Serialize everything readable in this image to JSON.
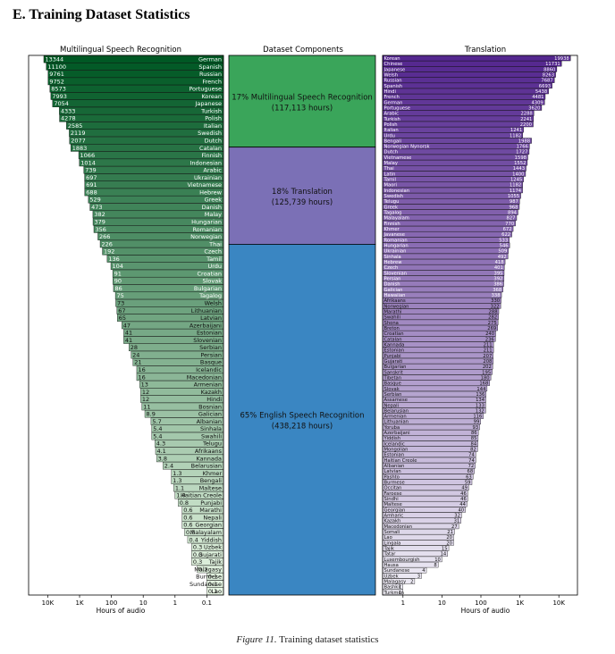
{
  "section_title": "E. Training Dataset Statistics",
  "caption": {
    "figure": "Figure 11.",
    "text": "Training dataset statistics"
  },
  "chart_data": [
    {
      "type": "bar",
      "orientation": "horizontal",
      "title": "Multilingual Speech Recognition",
      "xlabel": "Hours of audio",
      "xscale": "log",
      "direction": "right-to-left",
      "xticks": [
        "10K",
        "1K",
        "100",
        "10",
        "1",
        "0.1"
      ],
      "colormap": "greens",
      "categories": [
        "German",
        "Spanish",
        "Russian",
        "French",
        "Portuguese",
        "Korean",
        "Japanese",
        "Turkish",
        "Polish",
        "Italian",
        "Swedish",
        "Dutch",
        "Catalan",
        "Finnish",
        "Indonesian",
        "Arabic",
        "Ukrainian",
        "Vietnamese",
        "Hebrew",
        "Greek",
        "Danish",
        "Malay",
        "Hungarian",
        "Romanian",
        "Norwegian",
        "Thai",
        "Czech",
        "Tamil",
        "Urdu",
        "Croatian",
        "Slovak",
        "Bulgarian",
        "Tagalog",
        "Welsh",
        "Lithuanian",
        "Latvian",
        "Azerbaijani",
        "Estonian",
        "Slovenian",
        "Serbian",
        "Persian",
        "Basque",
        "Icelandic",
        "Macedonian",
        "Armenian",
        "Kazakh",
        "Hindi",
        "Bosnian",
        "Galician",
        "Albanian",
        "Sinhala",
        "Swahili",
        "Telugu",
        "Afrikaans",
        "Kannada",
        "Belarusian",
        "Khmer",
        "Bengali",
        "Maltese",
        "Haitian Creole",
        "Punjabi",
        "Marathi",
        "Nepali",
        "Georgian",
        "Malayalam",
        "Yiddish",
        "Uzbek",
        "Gujarati",
        "Tajik",
        "Malagasy",
        "Burmese",
        "Sundanese",
        "Lao"
      ],
      "values": [
        13344,
        11100,
        9761,
        9752,
        8573,
        7993,
        7054,
        4333,
        4278,
        2585,
        2119,
        2077,
        1883,
        1066,
        1014,
        739,
        697,
        691,
        688,
        529,
        473,
        382,
        379,
        356,
        266,
        226,
        192,
        136,
        104,
        91,
        90,
        86,
        75,
        73,
        67,
        65,
        47,
        41,
        41,
        28,
        24,
        21,
        16,
        16,
        13,
        12,
        12,
        11,
        8.9,
        5.7,
        5.4,
        5.4,
        4.3,
        4.1,
        3.8,
        2.4,
        1.3,
        1.3,
        1.1,
        1.0,
        0.8,
        0.6,
        0.6,
        0.6,
        0.5,
        0.4,
        0.3,
        0.3,
        0.3,
        0.2,
        0.1,
        0.1,
        0.1
      ],
      "value_labels": [
        "13344",
        "11100",
        "9761",
        "9752",
        "8573",
        "7993",
        "7054",
        "4333",
        "4278",
        "2585",
        "2119",
        "2077",
        "1883",
        "1066",
        "1014",
        "739",
        "697",
        "691",
        "688",
        "529",
        "473",
        "382",
        "379",
        "356",
        "266",
        "226",
        "192",
        "136",
        "104",
        "91",
        "90",
        "86",
        "75",
        "73",
        "67",
        "65",
        "47",
        "41",
        "41",
        "28",
        "24",
        "21",
        "16",
        "16",
        "13",
        "12",
        "12",
        "11",
        "8.9",
        "5.7",
        "5.4",
        "5.4",
        "4.3",
        "4.1",
        "3.8",
        "2.4",
        "1.3",
        "1.3",
        "1.1",
        "1.0",
        "0.8",
        "0.6",
        "0.6",
        "0.6",
        "0.5",
        "0.4",
        "0.3",
        "0.3",
        "0.3",
        "0.2",
        "0.1",
        "0.1",
        "0.1"
      ],
      "xlim": [
        0.03,
        40000
      ]
    },
    {
      "type": "stacked-bar",
      "title": "Dataset Components",
      "segments": [
        {
          "label": "17% Multilingual Speech Recognition",
          "sub": "(117,113 hours)",
          "percent": 17,
          "color": "#3aa55a"
        },
        {
          "label": "18% Translation",
          "sub": "(125,739 hours)",
          "percent": 18,
          "color": "#7b70b6"
        },
        {
          "label": "65% English Speech Recognition",
          "sub": "(438,218 hours)",
          "percent": 65,
          "color": "#3a86c2"
        }
      ]
    },
    {
      "type": "bar",
      "orientation": "horizontal",
      "title": "Translation",
      "xlabel": "Hours of audio",
      "xscale": "log",
      "direction": "left-to-right",
      "xticks": [
        "1",
        "10",
        "100",
        "1K",
        "10K"
      ],
      "colormap": "purples",
      "categories": [
        "Korean",
        "Chinese",
        "Japanese",
        "Welsh",
        "Russian",
        "Spanish",
        "Hindi",
        "French",
        "German",
        "Portuguese",
        "Arabic",
        "Turkish",
        "Polish",
        "Italian",
        "Urdu",
        "Bengali",
        "Norwegian Nynorsk",
        "Dutch",
        "Vietnamese",
        "Malay",
        "Thai",
        "Latin",
        "Tamil",
        "Maori",
        "Indonesian",
        "Swedish",
        "Telugu",
        "Greek",
        "Tagalog",
        "Malayalam",
        "Finnish",
        "Khmer",
        "Javanese",
        "Romanian",
        "Hungarian",
        "Ukrainian",
        "Sinhala",
        "Hebrew",
        "Czech",
        "Slovenian",
        "Persian",
        "Danish",
        "Galician",
        "Hawaiian",
        "Afrikaans",
        "Norwegian",
        "Marathi",
        "Swahili",
        "Shona",
        "Breton",
        "Croatian",
        "Catalan",
        "Kannada",
        "Estonian",
        "Punjabi",
        "Gujarati",
        "Bulgarian",
        "Sanskrit",
        "Tibetan",
        "Basque",
        "Slovak",
        "Serbian",
        "Assamese",
        "Nepali",
        "Belarusian",
        "Armenian",
        "Lithuanian",
        "Yoruba",
        "Azerbaijani",
        "Yiddish",
        "Icelandic",
        "Mongolian",
        "Estonian",
        "Haitian Creole",
        "Albanian",
        "Latvian",
        "Pashto",
        "Burmese",
        "Occitan",
        "Faroese",
        "Sindhi",
        "Maltese",
        "Georgian",
        "Amharic",
        "Kazakh",
        "Macedonian",
        "Somali",
        "Lao",
        "Lingala",
        "Tajik",
        "Tatar",
        "Luxembourgish",
        "Hausa",
        "Sundanese",
        "Uzbek",
        "Malagasy",
        "Bashkir",
        "Turkmen"
      ],
      "values": [
        19938,
        11731,
        8860,
        8263,
        7687,
        6693,
        5438,
        4481,
        4309,
        3620,
        2288,
        2241,
        2200,
        1241,
        1182,
        1988,
        1766,
        1727,
        1598,
        1552,
        1443,
        1400,
        1245,
        1182,
        1174,
        1055,
        987,
        968,
        894,
        827,
        770,
        672,
        622,
        533,
        546,
        509,
        492,
        418,
        401,
        395,
        392,
        386,
        368,
        338,
        330,
        322,
        288,
        282,
        275,
        269,
        240,
        236,
        211,
        211,
        207,
        208,
        202,
        195,
        180,
        168,
        144,
        136,
        134,
        133,
        132,
        116,
        99,
        93,
        86,
        85,
        84,
        82,
        74,
        74,
        72,
        68,
        63,
        59,
        49,
        46,
        46,
        44,
        40,
        32,
        31,
        27,
        21,
        20,
        20,
        15,
        14,
        10,
        8,
        4,
        3,
        2,
        1,
        1
      ],
      "value_labels": [
        "19938",
        "11731",
        "8860",
        "8263",
        "7687",
        "6693",
        "5438",
        "4481",
        "4309",
        "3620",
        "2288",
        "2241",
        "2200",
        "1241",
        "1182",
        "1988",
        "1766",
        "1727",
        "1598",
        "1552",
        "1443",
        "1400",
        "1245",
        "1182",
        "1174",
        "1055",
        "987",
        "968",
        "894",
        "827",
        "770",
        "672",
        "622",
        "533",
        "546",
        "509",
        "492",
        "418",
        "401",
        "395",
        "392",
        "386",
        "368",
        "338",
        "330",
        "322",
        "288",
        "282",
        "275",
        "269",
        "240",
        "236",
        "211",
        "211",
        "207",
        "208",
        "202",
        "195",
        "180",
        "168",
        "144",
        "136",
        "134",
        "133",
        "132",
        "116",
        "99",
        "93",
        "86",
        "85",
        "84",
        "82",
        "74",
        "74",
        "72",
        "68",
        "63",
        "59",
        "49",
        "46",
        "46",
        "44",
        "40",
        "32",
        "31",
        "27",
        "21",
        "20",
        "20",
        "15",
        "14",
        "10",
        "8",
        "4",
        "3",
        "2",
        "1",
        "1"
      ],
      "xlim": [
        0.3,
        30000
      ]
    }
  ]
}
